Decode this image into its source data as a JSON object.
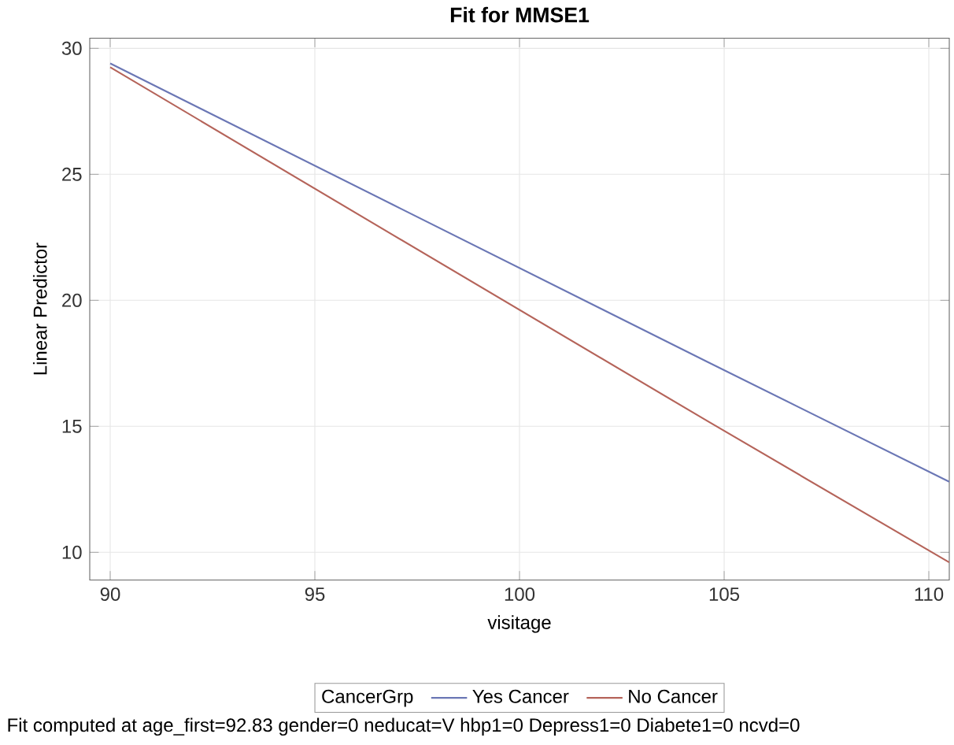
{
  "chart_data": {
    "type": "line",
    "title": "Fit for MMSE1",
    "xlabel": "visitage",
    "ylabel": "Linear Predictor",
    "legend_title": "CancerGrp",
    "series": [
      {
        "name": "Yes Cancer",
        "color": "#6b77b5",
        "x": [
          90,
          96.9,
          104.6,
          110.5
        ],
        "values": [
          29.4,
          23.8,
          17.55,
          12.8
        ]
      },
      {
        "name": "No Cancer",
        "color": "#b5645a",
        "x": [
          90,
          96.9,
          104.6,
          110.5
        ],
        "values": [
          29.25,
          22.6,
          15.2,
          9.6
        ]
      }
    ],
    "xlim": [
      89.5,
      110.5
    ],
    "ylim": [
      8.9,
      30.4
    ],
    "xticks": [
      90,
      95,
      100,
      105,
      110
    ],
    "yticks": [
      10,
      15,
      20,
      25,
      30
    ],
    "grid": true,
    "legend": "bottom",
    "marker": "none",
    "line_style": "solid",
    "annotations": [
      "Fit computed at age_first=92.83 gender=0 neducat=V hbp1=0 Depress1=0 Diabete1=0 ncvd=0"
    ]
  }
}
